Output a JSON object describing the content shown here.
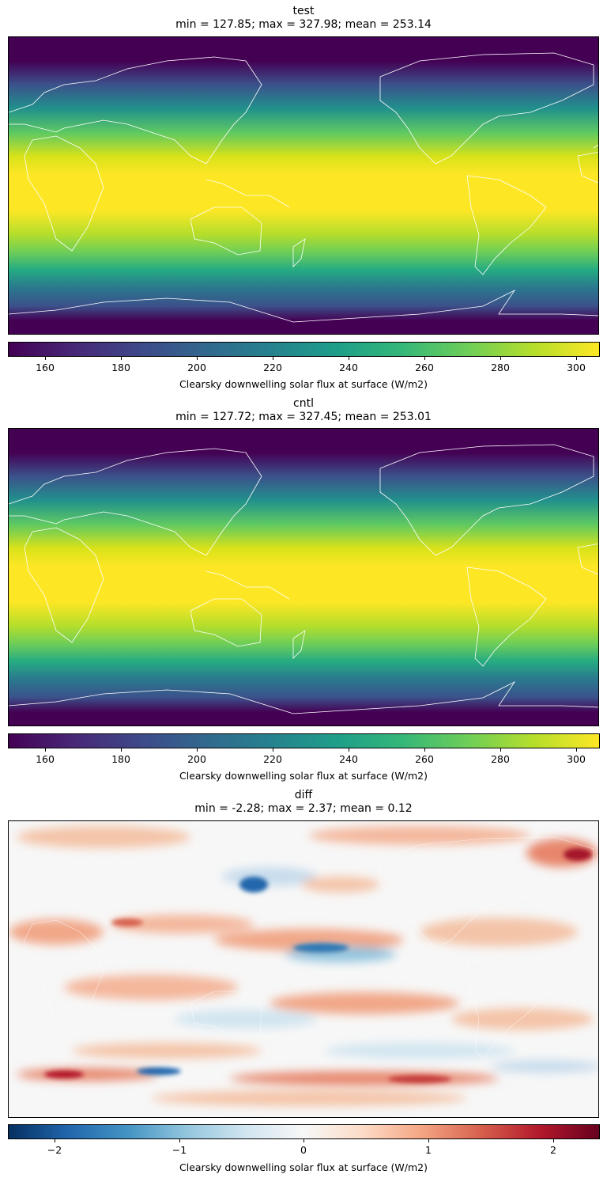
{
  "chart_data": [
    {
      "type": "heatmap",
      "title": "test",
      "subtitle": "min = 127.85; max = 327.98; mean = 253.14",
      "colormap": "viridis",
      "colorbar": {
        "label": "Clearsky downwelling solar flux at surface (W/m2)",
        "range": [
          150,
          306
        ],
        "ticks": [
          160,
          180,
          200,
          220,
          240,
          260,
          280,
          300
        ],
        "tick_labels": [
          "160",
          "180",
          "200",
          "220",
          "240",
          "260",
          "280",
          "300"
        ]
      },
      "stats": {
        "min": 127.85,
        "max": 327.98,
        "mean": 253.14
      }
    },
    {
      "type": "heatmap",
      "title": "cntl",
      "subtitle": "min = 127.72; max = 327.45; mean = 253.01",
      "colormap": "viridis",
      "colorbar": {
        "label": "Clearsky downwelling solar flux at surface (W/m2)",
        "range": [
          150,
          306
        ],
        "ticks": [
          160,
          180,
          200,
          220,
          240,
          260,
          280,
          300
        ],
        "tick_labels": [
          "160",
          "180",
          "200",
          "220",
          "240",
          "260",
          "280",
          "300"
        ]
      },
      "stats": {
        "min": 127.72,
        "max": 327.45,
        "mean": 253.01
      }
    },
    {
      "type": "heatmap",
      "title": "diff",
      "subtitle": "min = -2.28; max = 2.37; mean = 0.12",
      "colormap": "RdBu_r",
      "colorbar": {
        "label": "Clearsky downwelling solar flux at surface (W/m2)",
        "range": [
          -2.37,
          2.37
        ],
        "ticks": [
          -2,
          -1,
          0,
          1,
          2
        ],
        "tick_labels": [
          "−2",
          "−1",
          "0",
          "1",
          "2"
        ]
      },
      "stats": {
        "min": -2.28,
        "max": 2.37,
        "mean": 0.12
      }
    }
  ],
  "colors": {
    "viridis_low": "#440154",
    "viridis_mid": "#21918c",
    "viridis_high": "#fde725",
    "rdbu_low": "#053061",
    "rdbu_mid": "#f7f7f7",
    "rdbu_high": "#67001f",
    "coastline": "#ffffff"
  }
}
